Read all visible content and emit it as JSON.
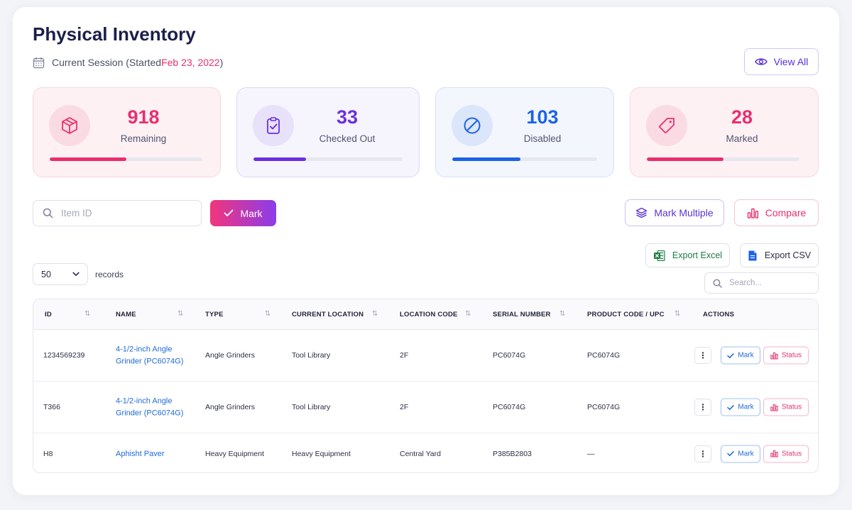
{
  "page": {
    "title": "Physical Inventory",
    "session_prefix": "Current Session (Started ",
    "session_date": "Feb 23, 2022",
    "session_suffix": ")",
    "view_all_label": "View All"
  },
  "stats": [
    {
      "value": "918",
      "label": "Remaining",
      "icon": "box-icon",
      "color": "#ea2f6e",
      "progress": 0.5
    },
    {
      "value": "33",
      "label": "Checked Out",
      "icon": "clipboard-check-icon",
      "color": "#6b2fe0",
      "progress": 0.35
    },
    {
      "value": "103",
      "label": "Disabled",
      "icon": "ban-icon",
      "color": "#1a63e6",
      "progress": 0.47
    },
    {
      "value": "28",
      "label": "Marked",
      "icon": "tag-icon",
      "color": "#ea2f6e",
      "progress": 0.5
    }
  ],
  "toolbar": {
    "item_id_placeholder": "Item ID",
    "mark_label": "Mark",
    "mark_multiple_label": "Mark Multiple",
    "compare_label": "Compare",
    "export_excel_label": "Export Excel",
    "export_csv_label": "Export CSV",
    "records_value": "50",
    "records_label": "records",
    "search_placeholder": "Search..."
  },
  "table": {
    "columns": [
      "ID",
      "NAME",
      "TYPE",
      "CURRENT LOCATION",
      "LOCATION CODE",
      "SERIAL NUMBER",
      "PRODUCT CODE / UPC",
      "ACTIONS"
    ],
    "rows": [
      {
        "id": "1234569239",
        "name": "4-1/2-inch Angle Grinder (PC6074G)",
        "type": "Angle Grinders",
        "location": "Tool Library",
        "location_code": "2F",
        "serial": "PC6074G",
        "product_code": "PC6074G"
      },
      {
        "id": "T366",
        "name": "4-1/2-inch Angle Grinder (PC6074G)",
        "type": "Angle Grinders",
        "location": "Tool Library",
        "location_code": "2F",
        "serial": "PC6074G",
        "product_code": "PC6074G"
      },
      {
        "id": "H8",
        "name": "Aphisht Paver",
        "type": "Heavy Equipment",
        "location": "Heavy Equipment",
        "location_code": "Central Yard",
        "serial": "P385B2803",
        "product_code": "—"
      }
    ],
    "row_mark_label": "Mark",
    "row_status_label": "Status",
    "row_menu_glyph": "⋮"
  }
}
